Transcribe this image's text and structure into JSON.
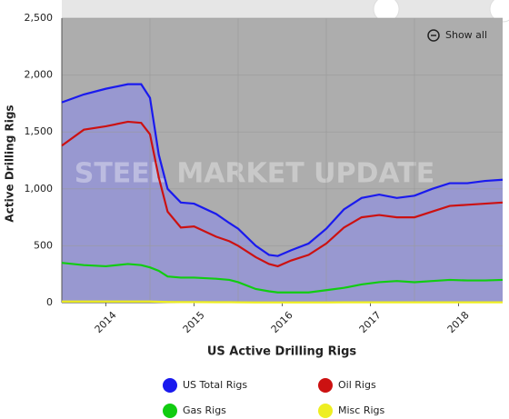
{
  "chart_data": {
    "type": "line",
    "x_label": "US Active Drilling Rigs",
    "y_label": "Active Drilling Rigs",
    "watermark": "STEEL MARKET UPDATE",
    "button": "Show all",
    "x": [
      2014.0,
      2014.25,
      2014.5,
      2014.75,
      2014.9,
      2015.0,
      2015.1,
      2015.2,
      2015.35,
      2015.5,
      2015.75,
      2015.9,
      2016.0,
      2016.2,
      2016.35,
      2016.45,
      2016.6,
      2016.8,
      2017.0,
      2017.2,
      2017.4,
      2017.6,
      2017.8,
      2018.0,
      2018.2,
      2018.4,
      2018.6,
      2018.8,
      2019.0
    ],
    "series": [
      {
        "name": "US Total Rigs",
        "color": "#1a1aee",
        "values": [
          1760,
          1830,
          1880,
          1920,
          1920,
          1800,
          1300,
          1000,
          880,
          870,
          780,
          700,
          650,
          500,
          420,
          410,
          460,
          520,
          650,
          820,
          920,
          950,
          920,
          940,
          1000,
          1050,
          1050,
          1070,
          1080
        ]
      },
      {
        "name": "Oil Rigs",
        "color": "#cc1111",
        "values": [
          1380,
          1520,
          1550,
          1590,
          1580,
          1480,
          1100,
          800,
          660,
          670,
          580,
          540,
          500,
          400,
          340,
          320,
          370,
          420,
          520,
          660,
          750,
          770,
          750,
          750,
          800,
          850,
          860,
          870,
          880
        ]
      },
      {
        "name": "Gas Rigs",
        "color": "#11cc11",
        "values": [
          350,
          330,
          320,
          340,
          330,
          310,
          280,
          230,
          220,
          220,
          210,
          200,
          180,
          120,
          100,
          90,
          90,
          90,
          110,
          130,
          160,
          180,
          190,
          180,
          190,
          200,
          195,
          195,
          200
        ]
      },
      {
        "name": "Misc Rigs",
        "color": "#eeee22",
        "values": [
          10,
          10,
          10,
          10,
          10,
          10,
          8,
          6,
          5,
          5,
          4,
          4,
          3,
          2,
          2,
          2,
          2,
          2,
          2,
          3,
          3,
          3,
          3,
          3,
          3,
          3,
          3,
          3,
          3
        ]
      }
    ],
    "xlim": [
      2014,
      2019
    ],
    "xticks": [
      {
        "value": 2014.5,
        "label": "2014"
      },
      {
        "value": 2015.5,
        "label": "2015"
      },
      {
        "value": 2016.5,
        "label": "2016"
      },
      {
        "value": 2017.5,
        "label": "2017"
      },
      {
        "value": 2018.5,
        "label": "2018"
      }
    ],
    "xgrid": [
      2015,
      2016,
      2017,
      2018
    ],
    "ylim": [
      0,
      2500
    ],
    "yticks": [
      0,
      500,
      {
        "value": 1000,
        "label": "1,000"
      },
      {
        "value": 1500,
        "label": "1,500"
      },
      {
        "value": 2000,
        "label": "2,000"
      },
      {
        "value": 2500,
        "label": "2,500"
      }
    ],
    "grid": true
  }
}
